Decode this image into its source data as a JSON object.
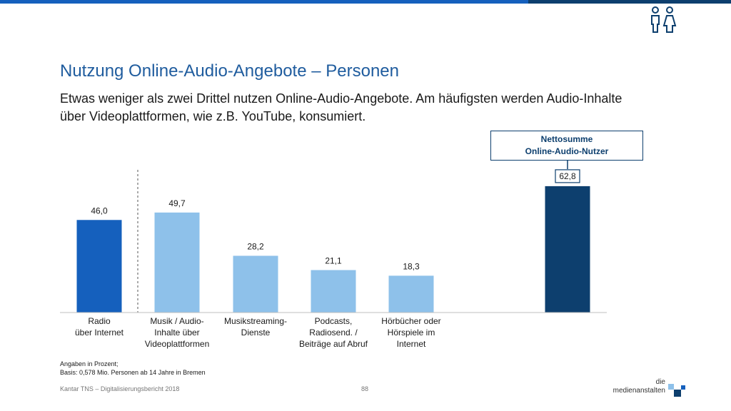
{
  "title": "Nutzung Online-Audio-Angebote – Personen",
  "subtitle": "Etwas weniger als zwei Drittel nutzen Online-Audio-Angebote. Am häufigsten werden Audio-Inhalte über Videoplattformen, wie z.B. YouTube, konsumiert.",
  "callout": {
    "line1": "Nettosumme",
    "line2": "Online-Audio-Nutzer"
  },
  "footnote": {
    "line1": "Angaben in Prozent;",
    "line2": "Basis: 0,578 Mio. Personen ab 14 Jahre in Bremen"
  },
  "footer": {
    "source": "Kantar TNS – Digitalisierungsbericht 2018",
    "page": "88"
  },
  "logo": {
    "line1": "die",
    "line2": "medienanstalten"
  },
  "icons": {
    "persons": "persons-icon"
  },
  "colors": {
    "radio": "#1560bd",
    "online": "#8ec1ea",
    "netto": "#0d3f6e",
    "title": "#1f5c9e"
  },
  "chart_data": {
    "type": "bar",
    "categories": [
      [
        "Radio",
        "über Internet"
      ],
      [
        "Musik / Audio-",
        "Inhalte über",
        "Videoplattformen"
      ],
      [
        "Musikstreaming-",
        "Dienste"
      ],
      [
        "Podcasts,",
        "Radiosend. /",
        "Beiträge auf Abruf"
      ],
      [
        "Hörbücher oder",
        "Hörspiele im",
        "Internet"
      ],
      [
        ""
      ]
    ],
    "values": [
      46.0,
      49.7,
      28.2,
      21.1,
      18.3,
      62.8
    ],
    "value_labels": [
      "46,0",
      "49,7",
      "28,2",
      "21,1",
      "18,3",
      "62,8"
    ],
    "bar_colors": [
      "#1560bd",
      "#8ec1ea",
      "#8ec1ea",
      "#8ec1ea",
      "#8ec1ea",
      "#0d3f6e"
    ],
    "ylim": [
      0,
      70
    ],
    "xlabel": "",
    "ylabel": "",
    "grid": false
  }
}
